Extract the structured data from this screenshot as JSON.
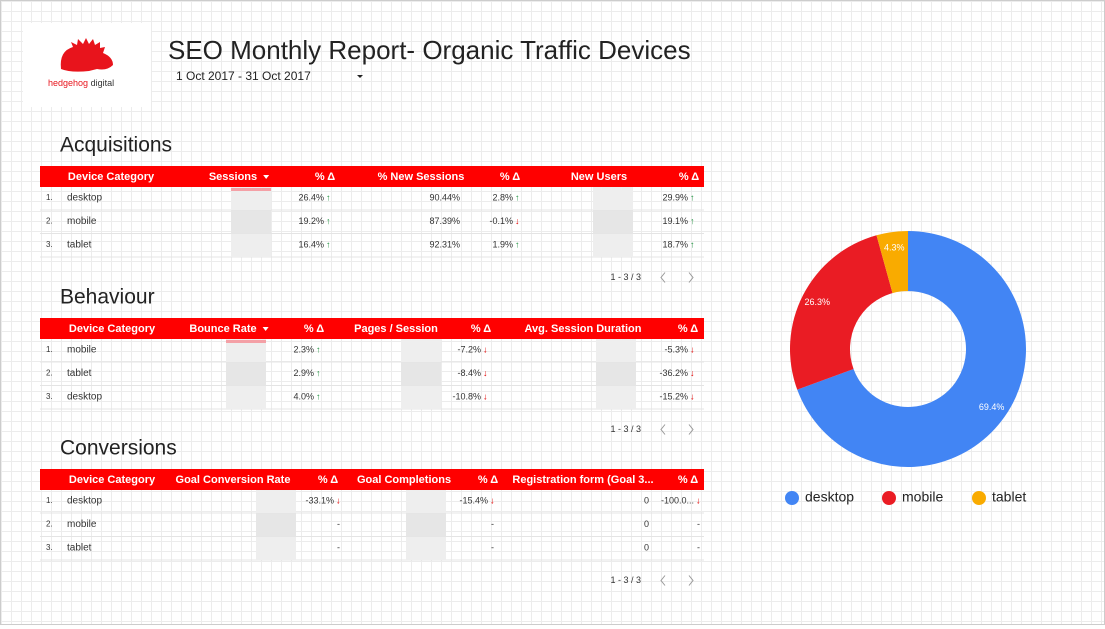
{
  "header": {
    "logo": {
      "brand": "hedgehog",
      "suffix": "digital"
    },
    "title": "SEO Monthly Report- Organic Traffic Devices",
    "date_range": "1 Oct 2017 - 31 Oct 2017"
  },
  "trend_colors": {
    "↑": "#1e8e3e",
    "↓": "#e00000"
  },
  "tables": [
    {
      "title": "Acquisitions",
      "headers": [
        "Device Category",
        "Sessions",
        "% Δ",
        "% New Sessions",
        "% Δ",
        "New Users",
        "% Δ"
      ],
      "sort_column": 1,
      "rows": [
        {
          "n": "1.",
          "cells": [
            "desktop",
            null,
            {
              "text": "26.4%",
              "trend": "↑"
            },
            "90.44%",
            {
              "text": "2.8%",
              "trend": "↑"
            },
            null,
            {
              "text": "29.9%",
              "trend": "↑"
            }
          ]
        },
        {
          "n": "2.",
          "cells": [
            "mobile",
            null,
            {
              "text": "19.2%",
              "trend": "↑"
            },
            "87.39%",
            {
              "text": "-0.1%",
              "trend": "↓"
            },
            null,
            {
              "text": "19.1%",
              "trend": "↑"
            }
          ]
        },
        {
          "n": "3.",
          "cells": [
            "tablet",
            null,
            {
              "text": "16.4%",
              "trend": "↑"
            },
            "92.31%",
            {
              "text": "1.9%",
              "trend": "↑"
            },
            null,
            {
              "text": "18.7%",
              "trend": "↑"
            }
          ]
        }
      ],
      "pagination": "1 - 3 / 3"
    },
    {
      "title": "Behaviour",
      "headers": [
        "Device Category",
        "Bounce Rate",
        "% Δ",
        "Pages / Session",
        "% Δ",
        "Avg. Session Duration",
        "% Δ"
      ],
      "sort_column": 1,
      "rows": [
        {
          "n": "1.",
          "cells": [
            "mobile",
            null,
            {
              "text": "2.3%",
              "trend": "↑"
            },
            null,
            {
              "text": "-7.2%",
              "trend": "↓"
            },
            null,
            {
              "text": "-5.3%",
              "trend": "↓"
            }
          ]
        },
        {
          "n": "2.",
          "cells": [
            "tablet",
            null,
            {
              "text": "2.9%",
              "trend": "↑"
            },
            null,
            {
              "text": "-8.4%",
              "trend": "↓"
            },
            null,
            {
              "text": "-36.2%",
              "trend": "↓"
            }
          ]
        },
        {
          "n": "3.",
          "cells": [
            "desktop",
            null,
            {
              "text": "4.0%",
              "trend": "↑"
            },
            null,
            {
              "text": "-10.8%",
              "trend": "↓"
            },
            null,
            {
              "text": "-15.2%",
              "trend": "↓"
            }
          ]
        }
      ],
      "pagination": "1 - 3 / 3"
    },
    {
      "title": "Conversions",
      "headers": [
        "Device Category",
        "Goal Conversion Rate",
        "% Δ",
        "Goal Completions",
        "% Δ",
        "Registration form (Goal 3...",
        "% Δ"
      ],
      "rows": [
        {
          "n": "1.",
          "cells": [
            "desktop",
            null,
            {
              "text": "-33.1%",
              "trend": "↓"
            },
            null,
            {
              "text": "-15.4%",
              "trend": "↓"
            },
            "0",
            {
              "text": "-100.0...",
              "trend": "↓"
            }
          ]
        },
        {
          "n": "2.",
          "cells": [
            "mobile",
            null,
            "-",
            null,
            "-",
            "0",
            "-"
          ]
        },
        {
          "n": "3.",
          "cells": [
            "tablet",
            null,
            "-",
            null,
            "-",
            "0",
            "-"
          ]
        }
      ],
      "pagination": "1 - 3 / 3"
    }
  ],
  "chart_data": {
    "type": "pie",
    "donut": true,
    "categories": [
      "desktop",
      "mobile",
      "tablet"
    ],
    "values": [
      69.4,
      26.3,
      4.3
    ],
    "value_labels": [
      "69.4%",
      "26.3%",
      "4.3%"
    ],
    "colors": [
      "#4285f4",
      "#ea1c24",
      "#f9ab00"
    ],
    "legend": "bottom"
  }
}
